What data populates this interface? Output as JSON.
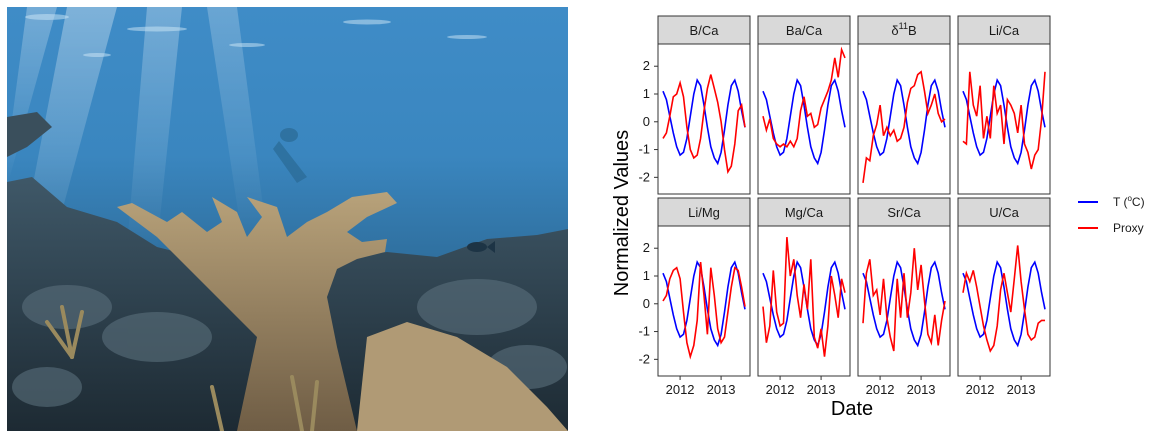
{
  "photo": {
    "description_icon": "coral-reef-photo"
  },
  "chart_data": {
    "type": "line",
    "xlabel": "Date",
    "ylabel": "Normalized Values",
    "x_ticks": [
      "2012",
      "2013"
    ],
    "y_ticks": [
      "2",
      "1",
      "0",
      "-1",
      "-2"
    ],
    "ylim": [
      -2.6,
      2.8
    ],
    "grid": false,
    "legend_position": "right",
    "legend": [
      {
        "name": "T (°C)",
        "color": "#0000ff"
      },
      {
        "name": "Proxy",
        "color": "#ff0000"
      }
    ],
    "temperature_series": [
      1.1,
      0.8,
      0.2,
      -0.4,
      -0.9,
      -1.2,
      -1.1,
      -0.6,
      0.2,
      1.0,
      1.5,
      1.3,
      0.6,
      -0.2,
      -0.9,
      -1.3,
      -1.5,
      -1.1,
      -0.3,
      0.6,
      1.3,
      1.5,
      1.1,
      0.4,
      -0.2
    ],
    "panels": [
      {
        "label": "B/Ca",
        "proxy": [
          -0.6,
          -0.4,
          0.2,
          0.9,
          1.0,
          1.4,
          0.9,
          -0.2,
          -1.0,
          -1.3,
          -1.2,
          -0.6,
          0.4,
          1.2,
          1.7,
          1.2,
          0.7,
          0.0,
          -1.0,
          -1.8,
          -1.6,
          -0.8,
          0.4,
          0.6,
          -0.2
        ]
      },
      {
        "label": "Ba/Ca",
        "proxy": [
          0.2,
          -0.3,
          0.1,
          -0.6,
          -0.8,
          -0.9,
          -0.8,
          -0.9,
          -0.7,
          -0.9,
          -0.6,
          0.4,
          0.9,
          0.2,
          0.3,
          -0.2,
          -0.1,
          0.5,
          0.8,
          1.1,
          1.5,
          2.3,
          1.6,
          2.6,
          2.3
        ]
      },
      {
        "label": "δ11B",
        "label_parts": {
          "base": "δ",
          "sup": "11",
          "tail": "B"
        },
        "proxy": [
          -2.2,
          -1.3,
          -1.4,
          -0.5,
          -0.1,
          0.6,
          -0.5,
          -0.2,
          -0.5,
          -0.3,
          -0.7,
          -0.6,
          -0.2,
          0.7,
          1.2,
          1.3,
          1.7,
          1.8,
          1.1,
          0.3,
          0.6,
          1.0,
          0.3,
          0.0,
          0.1
        ]
      },
      {
        "label": "Li/Ca",
        "proxy": [
          -0.7,
          -0.8,
          1.8,
          0.6,
          0.2,
          1.3,
          -0.6,
          0.2,
          -0.6,
          1.3,
          0.3,
          0.6,
          -0.8,
          0.8,
          0.6,
          0.3,
          -0.4,
          0.6,
          -0.8,
          -1.1,
          -1.7,
          -1.2,
          -1.0,
          0.1,
          1.8
        ]
      },
      {
        "label": "Li/Mg",
        "proxy": [
          0.1,
          0.3,
          0.9,
          1.2,
          1.3,
          0.9,
          -0.3,
          -1.4,
          -1.9,
          -1.5,
          -0.6,
          1.5,
          0.3,
          -1.1,
          1.3,
          0.3,
          -0.9,
          -1.4,
          -1.2,
          -0.3,
          0.6,
          1.3,
          1.2,
          0.6,
          -0.1
        ]
      },
      {
        "label": "Mg/Ca",
        "proxy": [
          -0.1,
          -1.4,
          -0.8,
          1.2,
          -0.3,
          -0.8,
          -0.7,
          2.4,
          1.0,
          1.6,
          0.3,
          -0.5,
          0.7,
          -0.2,
          1.6,
          -1.2,
          -1.6,
          -0.9,
          -1.9,
          -0.8,
          1.0,
          0.3,
          -0.5,
          0.9,
          0.4
        ]
      },
      {
        "label": "Sr/Ca",
        "proxy": [
          -0.7,
          1.1,
          1.6,
          0.3,
          0.5,
          -0.4,
          0.9,
          -0.5,
          -1.2,
          -1.7,
          0.9,
          -0.5,
          1.1,
          -0.5,
          0.4,
          2.0,
          0.5,
          1.4,
          0.1,
          -1.1,
          -1.4,
          -0.4,
          -1.5,
          -0.6,
          0.1
        ]
      },
      {
        "label": "U/Ca",
        "proxy": [
          0.4,
          1.1,
          0.8,
          1.2,
          0.6,
          -0.1,
          -0.8,
          -1.3,
          -1.7,
          -1.5,
          -0.8,
          0.5,
          1.1,
          0.4,
          -0.3,
          0.9,
          2.1,
          0.8,
          -0.2,
          -1.1,
          -1.3,
          -1.2,
          -0.7,
          -0.6,
          -0.6
        ]
      }
    ]
  }
}
